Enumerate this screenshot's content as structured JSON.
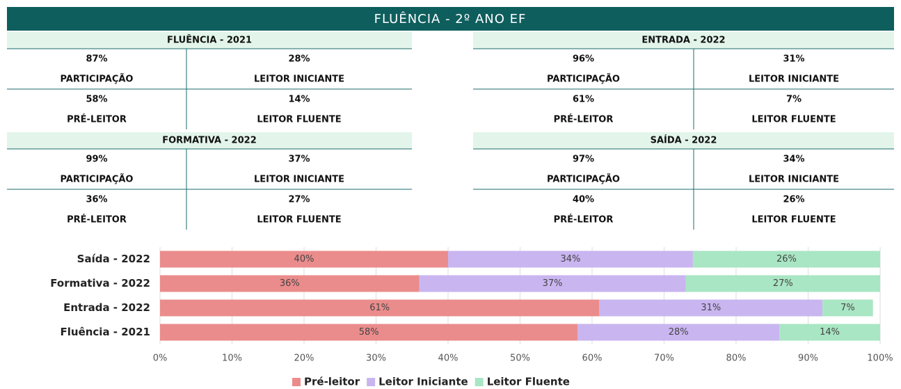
{
  "header": {
    "title": "FLUÊNCIA - 2º ANO EF"
  },
  "panels": [
    {
      "title": "FLUÊNCIA - 2021",
      "items": [
        {
          "value": "87%",
          "label": "PARTICIPAÇÃO"
        },
        {
          "value": "28%",
          "label": "LEITOR INICIANTE"
        },
        {
          "value": "58%",
          "label": "PRÉ-LEITOR"
        },
        {
          "value": "14%",
          "label": "LEITOR FLUENTE"
        }
      ]
    },
    {
      "title": "ENTRADA - 2022",
      "items": [
        {
          "value": "96%",
          "label": "PARTICIPAÇÃO"
        },
        {
          "value": "31%",
          "label": "LEITOR INICIANTE"
        },
        {
          "value": "61%",
          "label": "PRÉ-LEITOR"
        },
        {
          "value": "7%",
          "label": "LEITOR FLUENTE"
        }
      ]
    },
    {
      "title": "FORMATIVA - 2022",
      "items": [
        {
          "value": "99%",
          "label": "PARTICIPAÇÃO"
        },
        {
          "value": "37%",
          "label": "LEITOR INICIANTE"
        },
        {
          "value": "36%",
          "label": "PRÉ-LEITOR"
        },
        {
          "value": "27%",
          "label": "LEITOR FLUENTE"
        }
      ]
    },
    {
      "title": "SAÍDA - 2022",
      "items": [
        {
          "value": "97%",
          "label": "PARTICIPAÇÃO"
        },
        {
          "value": "34%",
          "label": "LEITOR INICIANTE"
        },
        {
          "value": "40%",
          "label": "PRÉ-LEITOR"
        },
        {
          "value": "26%",
          "label": "LEITOR FLUENTE"
        }
      ]
    }
  ],
  "chart_data": {
    "type": "stacked_barh",
    "categories": [
      "Saída - 2022",
      "Formativa - 2022",
      "Entrada - 2022",
      "Fluência - 2021"
    ],
    "series": [
      {
        "name": "Pré-leitor",
        "color": "#eb8c8c",
        "values": [
          40,
          36,
          61,
          58
        ],
        "value_labels": [
          "40%",
          "36%",
          "61%",
          "58%"
        ]
      },
      {
        "name": "Leitor Iniciante",
        "color": "#c9b5f0",
        "values": [
          34,
          37,
          31,
          28
        ],
        "value_labels": [
          "34%",
          "37%",
          "31%",
          "28%"
        ]
      },
      {
        "name": "Leitor Fluente",
        "color": "#a9e6c4",
        "values": [
          26,
          27,
          7,
          14
        ],
        "value_labels": [
          "26%",
          "27%",
          "7%",
          "14%"
        ]
      }
    ],
    "xlim": [
      0,
      100
    ],
    "xticks": [
      {
        "value": 0,
        "label": "0%"
      },
      {
        "value": 10,
        "label": "10%"
      },
      {
        "value": 20,
        "label": "20%"
      },
      {
        "value": 30,
        "label": "30%"
      },
      {
        "value": 40,
        "label": "40%"
      },
      {
        "value": 50,
        "label": "50%"
      },
      {
        "value": 60,
        "label": "60%"
      },
      {
        "value": 70,
        "label": "70%"
      },
      {
        "value": 80,
        "label": "80%"
      },
      {
        "value": 90,
        "label": "90%"
      },
      {
        "value": 100,
        "label": "100%"
      }
    ],
    "grid": true,
    "legend": "bottom"
  }
}
